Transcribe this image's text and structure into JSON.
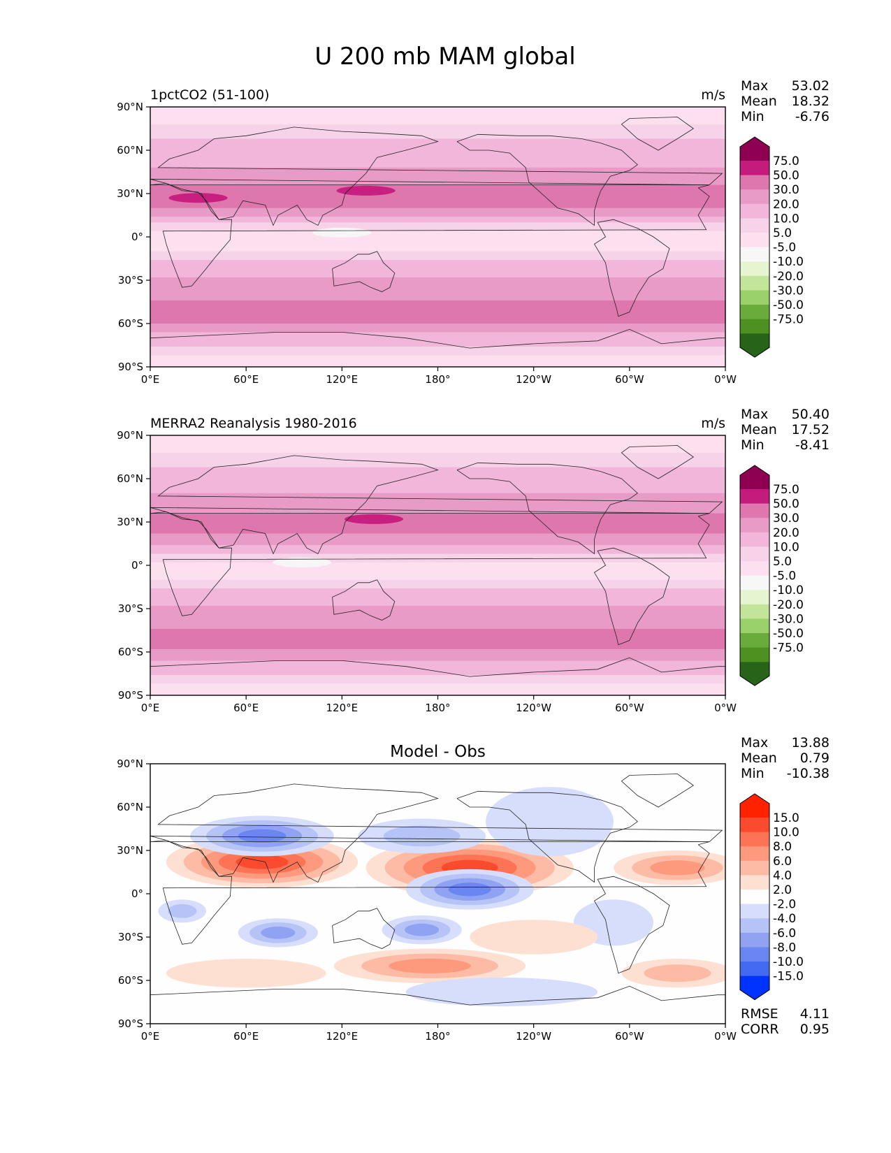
{
  "figure_title": "U 200 mb MAM global",
  "chart_data": [
    {
      "type": "heatmap",
      "panel": "test",
      "title_left": "1pctCO2 (51-100)",
      "title_center": "",
      "units": "m/s",
      "stats": [
        {
          "label": "Max",
          "value": "53.02"
        },
        {
          "label": "Mean",
          "value": "18.32"
        },
        {
          "label": "Min",
          "value": "-6.76"
        }
      ],
      "x_ticks": [
        "0°E",
        "60°E",
        "120°E",
        "180°",
        "120°W",
        "60°W",
        "0°W"
      ],
      "y_ticks": [
        "90°N",
        "60°N",
        "30°N",
        "0°",
        "30°S",
        "60°S",
        "90°S"
      ],
      "xlim": [
        0,
        360
      ],
      "ylim": [
        -90,
        90
      ],
      "colorbar": {
        "levels": [
          "75.0",
          "50.0",
          "30.0",
          "20.0",
          "10.0",
          "5.0",
          "-5.0",
          "-10.0",
          "-20.0",
          "-30.0",
          "-50.0",
          "-75.0"
        ],
        "colors": [
          "#8e0152",
          "#c51b7d",
          "#de77ae",
          "#e99bc7",
          "#f1b6da",
          "#f6d3e8",
          "#fde0ef",
          "#f7f7f7",
          "#e6f5d0",
          "#c3e59a",
          "#9bd16a",
          "#6aac3c",
          "#4d9221",
          "#276419"
        ]
      },
      "zonal_profile_ms": {
        "lat": [
          90,
          75,
          60,
          50,
          40,
          30,
          25,
          20,
          10,
          0,
          -10,
          -20,
          -30,
          -40,
          -50,
          -55,
          -60,
          -70,
          -80,
          -90
        ],
        "u": [
          2,
          6,
          14,
          18,
          26,
          38,
          40,
          32,
          10,
          2,
          4,
          14,
          22,
          28,
          34,
          36,
          30,
          14,
          6,
          2
        ]
      },
      "jet_cores": [
        {
          "lon": 30,
          "lat": 27,
          "u": 52
        },
        {
          "lon": 135,
          "lat": 32,
          "u": 50
        },
        {
          "lon": 120,
          "lat": 3,
          "u": -6
        }
      ]
    },
    {
      "type": "heatmap",
      "panel": "reference",
      "title_left": "MERRA2 Reanalysis 1980-2016",
      "title_center": "",
      "units": "m/s",
      "stats": [
        {
          "label": "Max",
          "value": "50.40"
        },
        {
          "label": "Mean",
          "value": "17.52"
        },
        {
          "label": "Min",
          "value": "-8.41"
        }
      ],
      "x_ticks": [
        "0°E",
        "60°E",
        "120°E",
        "180°",
        "120°W",
        "60°W",
        "0°W"
      ],
      "y_ticks": [
        "90°N",
        "60°N",
        "30°N",
        "0°",
        "30°S",
        "60°S",
        "90°S"
      ],
      "xlim": [
        0,
        360
      ],
      "ylim": [
        -90,
        90
      ],
      "colorbar": {
        "levels": [
          "75.0",
          "50.0",
          "30.0",
          "20.0",
          "10.0",
          "5.0",
          "-5.0",
          "-10.0",
          "-20.0",
          "-30.0",
          "-50.0",
          "-75.0"
        ],
        "colors": [
          "#8e0152",
          "#c51b7d",
          "#de77ae",
          "#e99bc7",
          "#f1b6da",
          "#f6d3e8",
          "#fde0ef",
          "#f7f7f7",
          "#e6f5d0",
          "#c3e59a",
          "#9bd16a",
          "#6aac3c",
          "#4d9221",
          "#276419"
        ]
      },
      "zonal_profile_ms": {
        "lat": [
          90,
          75,
          60,
          50,
          40,
          30,
          25,
          20,
          10,
          0,
          -10,
          -20,
          -30,
          -40,
          -50,
          -55,
          -60,
          -70,
          -80,
          -90
        ],
        "u": [
          2,
          6,
          14,
          20,
          26,
          34,
          36,
          28,
          12,
          3,
          5,
          14,
          22,
          28,
          32,
          33,
          28,
          14,
          6,
          2
        ]
      },
      "jet_cores": [
        {
          "lon": 140,
          "lat": 32,
          "u": 50
        },
        {
          "lon": 95,
          "lat": 2,
          "u": -8
        }
      ]
    },
    {
      "type": "heatmap",
      "panel": "difference",
      "title_left": "",
      "title_center": "Model - Obs",
      "units": "",
      "stats": [
        {
          "label": "Max",
          "value": "13.88"
        },
        {
          "label": "Mean",
          "value": "0.79"
        },
        {
          "label": "Min",
          "value": "-10.38"
        }
      ],
      "metrics": [
        {
          "label": "RMSE",
          "value": "4.11"
        },
        {
          "label": "CORR",
          "value": "0.95"
        }
      ],
      "x_ticks": [
        "0°E",
        "60°E",
        "120°E",
        "180°",
        "120°W",
        "60°W",
        "0°W"
      ],
      "y_ticks": [
        "90°N",
        "60°N",
        "30°N",
        "0°",
        "30°S",
        "60°S",
        "90°S"
      ],
      "xlim": [
        0,
        360
      ],
      "ylim": [
        -90,
        90
      ],
      "colorbar": {
        "levels": [
          "15.0",
          "10.0",
          "8.0",
          "6.0",
          "4.0",
          "2.0",
          "-2.0",
          "-4.0",
          "-6.0",
          "-8.0",
          "-10.0",
          "-15.0"
        ],
        "colors": [
          "#ff2200",
          "#fb4b2e",
          "#fc7455",
          "#fd9a7e",
          "#fdbba5",
          "#fee0d3",
          "#fefefe",
          "#d7defb",
          "#b6c3f6",
          "#8fa3f2",
          "#6a86f0",
          "#436af0",
          "#0033ff"
        ]
      },
      "anomalies": [
        {
          "lon": 70,
          "lat": 22,
          "w": 60,
          "h": 9,
          "v": 11
        },
        {
          "lon": 200,
          "lat": 18,
          "w": 65,
          "h": 10,
          "v": 12
        },
        {
          "lon": 330,
          "lat": 18,
          "w": 40,
          "h": 6,
          "v": 6
        },
        {
          "lon": 70,
          "lat": 40,
          "w": 45,
          "h": 7,
          "v": -8
        },
        {
          "lon": 170,
          "lat": 40,
          "w": 40,
          "h": 6,
          "v": -4
        },
        {
          "lon": 250,
          "lat": 50,
          "w": 40,
          "h": 12,
          "v": -3
        },
        {
          "lon": 200,
          "lat": 3,
          "w": 40,
          "h": 7,
          "v": -9
        },
        {
          "lon": 80,
          "lat": -27,
          "w": 25,
          "h": 5,
          "v": -6
        },
        {
          "lon": 170,
          "lat": -25,
          "w": 25,
          "h": 5,
          "v": -6
        },
        {
          "lon": 20,
          "lat": -12,
          "w": 15,
          "h": 4,
          "v": -4
        },
        {
          "lon": 290,
          "lat": -20,
          "w": 25,
          "h": 8,
          "v": -3
        },
        {
          "lon": 175,
          "lat": -50,
          "w": 60,
          "h": 6,
          "v": 7
        },
        {
          "lon": 330,
          "lat": -55,
          "w": 35,
          "h": 5,
          "v": 5
        },
        {
          "lon": 60,
          "lat": -55,
          "w": 50,
          "h": 5,
          "v": 3
        },
        {
          "lon": 240,
          "lat": -30,
          "w": 40,
          "h": 6,
          "v": 3
        },
        {
          "lon": 220,
          "lat": -68,
          "w": 60,
          "h": 5,
          "v": -3
        }
      ]
    }
  ]
}
